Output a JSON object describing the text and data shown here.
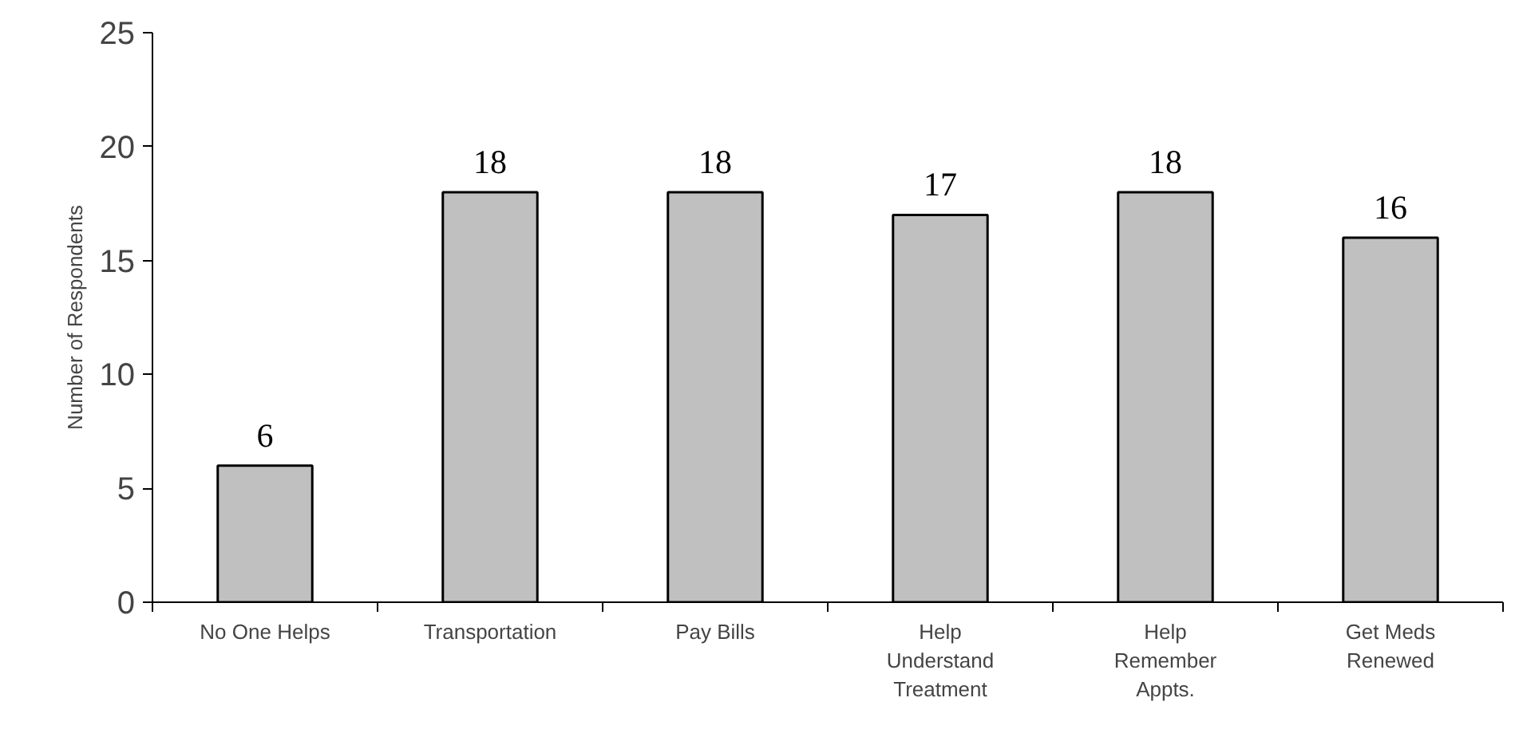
{
  "chart_data": {
    "type": "bar",
    "ylabel": "Number of Respondents",
    "categories": [
      "No One Helps",
      "Transportation",
      "Pay Bills",
      "Help\nUnderstand\nTreatment",
      "Help\nRemember\nAppts.",
      "Get Meds\nRenewed"
    ],
    "values": [
      6,
      18,
      18,
      17,
      18,
      16
    ],
    "color": "#c0c0c0",
    "ylim": [
      0,
      25
    ],
    "yticks": [
      0,
      5,
      10,
      15,
      20,
      25
    ],
    "grid": false,
    "data_labels": true
  }
}
